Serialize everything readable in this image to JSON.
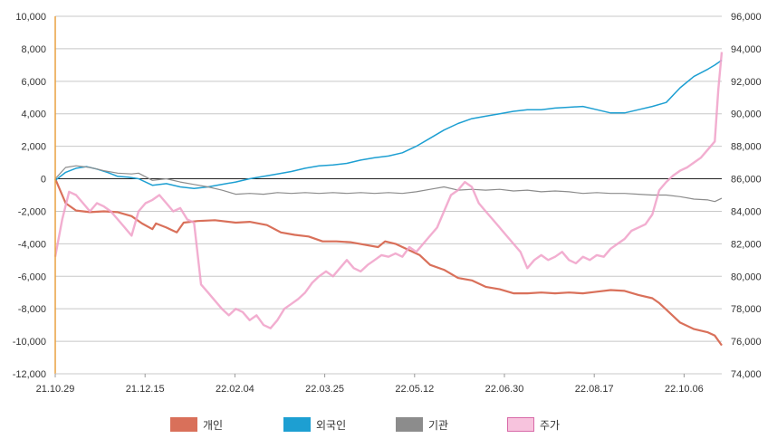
{
  "chart_data": {
    "type": "line",
    "title": "",
    "xlabel": "",
    "ylabel": "",
    "x_ticks": [
      "21.10.29",
      "21.12.15",
      "22.02.04",
      "22.03.25",
      "22.05.12",
      "22.06.30",
      "22.08.17",
      "22.10.06"
    ],
    "y_left": {
      "range": [
        -12000,
        10000
      ],
      "ticks": [
        "10,000",
        "8,000",
        "6,000",
        "4,000",
        "2,000",
        "0",
        "-2,000",
        "-4,000",
        "-6,000",
        "-8,000",
        "-10,000",
        "-12,000"
      ]
    },
    "y_right": {
      "range": [
        74000,
        96000
      ],
      "ticks": [
        "96,000",
        "94,000",
        "92,000",
        "90,000",
        "88,000",
        "86,000",
        "84,000",
        "82,000",
        "80,000",
        "78,000",
        "76,000",
        "74,000"
      ]
    },
    "grid": true,
    "legend_position": "bottom",
    "series": [
      {
        "name": "개인",
        "axis": "left",
        "color": "#d9705a",
        "points": [
          [
            0,
            0
          ],
          [
            3,
            -1500
          ],
          [
            6,
            -1950
          ],
          [
            10,
            -2050
          ],
          [
            14,
            -2000
          ],
          [
            18,
            -2050
          ],
          [
            22,
            -2300
          ],
          [
            25,
            -2750
          ],
          [
            28,
            -3100
          ],
          [
            29,
            -2750
          ],
          [
            32,
            -3000
          ],
          [
            35,
            -3300
          ],
          [
            37,
            -2700
          ],
          [
            41,
            -2600
          ],
          [
            46,
            -2550
          ],
          [
            52,
            -2700
          ],
          [
            56,
            -2650
          ],
          [
            61,
            -2850
          ],
          [
            65,
            -3300
          ],
          [
            69,
            -3450
          ],
          [
            73,
            -3550
          ],
          [
            77,
            -3850
          ],
          [
            81,
            -3850
          ],
          [
            85,
            -3900
          ],
          [
            89,
            -4050
          ],
          [
            93,
            -4200
          ],
          [
            95,
            -3850
          ],
          [
            98,
            -4000
          ],
          [
            101,
            -4300
          ],
          [
            105,
            -4700
          ],
          [
            108,
            -5300
          ],
          [
            112,
            -5600
          ],
          [
            116,
            -6100
          ],
          [
            120,
            -6250
          ],
          [
            124,
            -6650
          ],
          [
            128,
            -6800
          ],
          [
            132,
            -7050
          ],
          [
            136,
            -7050
          ],
          [
            140,
            -7000
          ],
          [
            144,
            -7050
          ],
          [
            148,
            -7000
          ],
          [
            152,
            -7050
          ],
          [
            156,
            -6950
          ],
          [
            160,
            -6850
          ],
          [
            164,
            -6900
          ],
          [
            168,
            -7150
          ],
          [
            172,
            -7350
          ],
          [
            174,
            -7650
          ],
          [
            176,
            -8050
          ],
          [
            180,
            -8850
          ],
          [
            184,
            -9250
          ],
          [
            188,
            -9450
          ],
          [
            190,
            -9650
          ],
          [
            192,
            -10250
          ]
        ]
      },
      {
        "name": "외국인",
        "axis": "left",
        "color": "#1d9fd2",
        "points": [
          [
            0,
            -100
          ],
          [
            3,
            400
          ],
          [
            6,
            650
          ],
          [
            9,
            750
          ],
          [
            12,
            600
          ],
          [
            15,
            400
          ],
          [
            18,
            150
          ],
          [
            21,
            100
          ],
          [
            24,
            0
          ],
          [
            28,
            -400
          ],
          [
            32,
            -300
          ],
          [
            36,
            -500
          ],
          [
            40,
            -600
          ],
          [
            44,
            -500
          ],
          [
            48,
            -350
          ],
          [
            52,
            -200
          ],
          [
            56,
            0
          ],
          [
            60,
            150
          ],
          [
            64,
            300
          ],
          [
            68,
            450
          ],
          [
            72,
            650
          ],
          [
            76,
            800
          ],
          [
            80,
            850
          ],
          [
            84,
            950
          ],
          [
            88,
            1150
          ],
          [
            92,
            1300
          ],
          [
            96,
            1400
          ],
          [
            100,
            1600
          ],
          [
            104,
            2000
          ],
          [
            108,
            2500
          ],
          [
            112,
            3000
          ],
          [
            116,
            3400
          ],
          [
            120,
            3700
          ],
          [
            124,
            3850
          ],
          [
            128,
            4000
          ],
          [
            132,
            4150
          ],
          [
            136,
            4250
          ],
          [
            140,
            4250
          ],
          [
            144,
            4350
          ],
          [
            148,
            4400
          ],
          [
            152,
            4450
          ],
          [
            156,
            4250
          ],
          [
            160,
            4050
          ],
          [
            164,
            4050
          ],
          [
            168,
            4250
          ],
          [
            172,
            4450
          ],
          [
            176,
            4700
          ],
          [
            180,
            5600
          ],
          [
            184,
            6300
          ],
          [
            188,
            6750
          ],
          [
            190,
            7000
          ],
          [
            192,
            7300
          ]
        ]
      },
      {
        "name": "기관",
        "axis": "left",
        "color": "#8c8c8c",
        "points": [
          [
            0,
            0
          ],
          [
            3,
            700
          ],
          [
            6,
            800
          ],
          [
            10,
            700
          ],
          [
            14,
            500
          ],
          [
            18,
            350
          ],
          [
            22,
            300
          ],
          [
            24,
            350
          ],
          [
            28,
            -100
          ],
          [
            32,
            0
          ],
          [
            36,
            -200
          ],
          [
            40,
            -350
          ],
          [
            44,
            -500
          ],
          [
            48,
            -700
          ],
          [
            52,
            -950
          ],
          [
            56,
            -900
          ],
          [
            60,
            -950
          ],
          [
            64,
            -850
          ],
          [
            68,
            -900
          ],
          [
            72,
            -850
          ],
          [
            76,
            -900
          ],
          [
            80,
            -850
          ],
          [
            84,
            -900
          ],
          [
            88,
            -850
          ],
          [
            92,
            -900
          ],
          [
            96,
            -850
          ],
          [
            100,
            -900
          ],
          [
            104,
            -800
          ],
          [
            108,
            -650
          ],
          [
            112,
            -500
          ],
          [
            116,
            -700
          ],
          [
            120,
            -650
          ],
          [
            124,
            -700
          ],
          [
            128,
            -650
          ],
          [
            132,
            -750
          ],
          [
            136,
            -700
          ],
          [
            140,
            -800
          ],
          [
            144,
            -750
          ],
          [
            148,
            -800
          ],
          [
            152,
            -900
          ],
          [
            156,
            -850
          ],
          [
            160,
            -900
          ],
          [
            164,
            -900
          ],
          [
            168,
            -950
          ],
          [
            172,
            -1000
          ],
          [
            176,
            -1000
          ],
          [
            180,
            -1100
          ],
          [
            184,
            -1250
          ],
          [
            188,
            -1300
          ],
          [
            190,
            -1400
          ],
          [
            192,
            -1200
          ]
        ]
      },
      {
        "name": "주가",
        "axis": "right",
        "color": "#f0a0c8",
        "points": [
          [
            0,
            81200
          ],
          [
            2,
            83500
          ],
          [
            4,
            85200
          ],
          [
            6,
            85000
          ],
          [
            8,
            84500
          ],
          [
            10,
            84000
          ],
          [
            12,
            84500
          ],
          [
            14,
            84300
          ],
          [
            16,
            84000
          ],
          [
            18,
            83500
          ],
          [
            20,
            83000
          ],
          [
            22,
            82500
          ],
          [
            24,
            84000
          ],
          [
            26,
            84500
          ],
          [
            28,
            84700
          ],
          [
            30,
            85000
          ],
          [
            32,
            84500
          ],
          [
            34,
            84000
          ],
          [
            36,
            84200
          ],
          [
            38,
            83500
          ],
          [
            40,
            83300
          ],
          [
            42,
            79500
          ],
          [
            44,
            79000
          ],
          [
            46,
            78500
          ],
          [
            48,
            78000
          ],
          [
            50,
            77600
          ],
          [
            52,
            78000
          ],
          [
            54,
            77800
          ],
          [
            56,
            77300
          ],
          [
            58,
            77600
          ],
          [
            60,
            77000
          ],
          [
            62,
            76800
          ],
          [
            64,
            77300
          ],
          [
            66,
            78000
          ],
          [
            68,
            78300
          ],
          [
            70,
            78600
          ],
          [
            72,
            79000
          ],
          [
            74,
            79600
          ],
          [
            76,
            80000
          ],
          [
            78,
            80300
          ],
          [
            80,
            80000
          ],
          [
            82,
            80500
          ],
          [
            84,
            81000
          ],
          [
            86,
            80500
          ],
          [
            88,
            80300
          ],
          [
            90,
            80700
          ],
          [
            92,
            81000
          ],
          [
            94,
            81300
          ],
          [
            96,
            81200
          ],
          [
            98,
            81400
          ],
          [
            100,
            81200
          ],
          [
            102,
            81800
          ],
          [
            104,
            81500
          ],
          [
            106,
            82000
          ],
          [
            108,
            82500
          ],
          [
            110,
            83000
          ],
          [
            112,
            84000
          ],
          [
            114,
            85000
          ],
          [
            116,
            85300
          ],
          [
            118,
            85800
          ],
          [
            120,
            85500
          ],
          [
            122,
            84500
          ],
          [
            124,
            84000
          ],
          [
            126,
            83500
          ],
          [
            128,
            83000
          ],
          [
            130,
            82500
          ],
          [
            132,
            82000
          ],
          [
            134,
            81500
          ],
          [
            136,
            80500
          ],
          [
            138,
            81000
          ],
          [
            140,
            81300
          ],
          [
            142,
            81000
          ],
          [
            144,
            81200
          ],
          [
            146,
            81500
          ],
          [
            148,
            81000
          ],
          [
            150,
            80800
          ],
          [
            152,
            81200
          ],
          [
            154,
            81000
          ],
          [
            156,
            81300
          ],
          [
            158,
            81200
          ],
          [
            160,
            81700
          ],
          [
            162,
            82000
          ],
          [
            164,
            82300
          ],
          [
            166,
            82800
          ],
          [
            168,
            83000
          ],
          [
            170,
            83200
          ],
          [
            172,
            83800
          ],
          [
            174,
            85300
          ],
          [
            176,
            85800
          ],
          [
            178,
            86200
          ],
          [
            180,
            86500
          ],
          [
            182,
            86700
          ],
          [
            184,
            87000
          ],
          [
            186,
            87300
          ],
          [
            188,
            87800
          ],
          [
            190,
            88300
          ],
          [
            191,
            91500
          ],
          [
            192,
            93800
          ]
        ]
      }
    ]
  }
}
